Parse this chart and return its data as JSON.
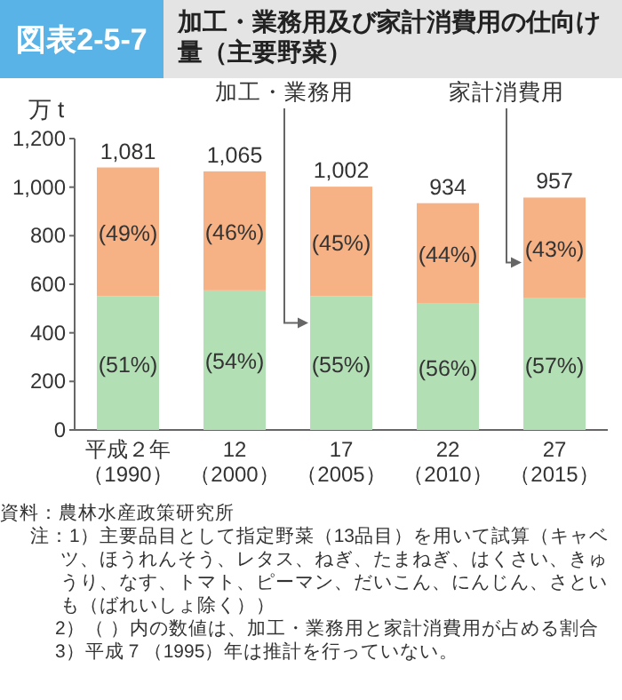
{
  "chart_data": {
    "type": "bar",
    "stacked": true,
    "title": "加工・業務用及び家計消費用の仕向け量（主要野菜）",
    "ylabel": "万 t",
    "categories": [
      "平成２年（1990）",
      "12（2000）",
      "17（2005）",
      "22（2010）",
      "27（2015）"
    ],
    "series": [
      {
        "name": "加工・業務用",
        "color": "#b3dfb5",
        "values": [
          551,
          575,
          551,
          523,
          545
        ]
      },
      {
        "name": "家計消費用",
        "color": "#f6b184",
        "values": [
          530,
          490,
          451,
          411,
          412
        ]
      }
    ],
    "totals": [
      "1,081",
      "1,065",
      "1,002",
      "934",
      "957"
    ],
    "ylim": [
      0,
      1200
    ],
    "yticks": [
      {
        "value": 0,
        "label": "0"
      },
      {
        "value": 200,
        "label": "200"
      },
      {
        "value": 400,
        "label": "400"
      },
      {
        "value": 600,
        "label": "600"
      },
      {
        "value": 800,
        "label": "800"
      },
      {
        "value": 1000,
        "label": "1,000"
      },
      {
        "value": 1200,
        "label": "1,200"
      }
    ],
    "grid": false,
    "annotations": [
      "図表2-5-7",
      "資料：農林水産政策研究所",
      "注：1）主要品目として指定野菜（13品目）を用いて試算（キャベツ、ほうれんそう、レタス、ねぎ、たまねぎ、はくさい、きゅうり、なす、トマト、ピーマン、だいこん、にんじん、さといも（ばれいしょ除く））",
      "2）（ ）内の数値は、加工・業務用と家計消費用が占める割合",
      "3）平成７（1995）年は推計を行っていない。",
      "(51%)",
      "(54%)",
      "(55%)",
      "(56%)",
      "(57%)",
      "(49%)",
      "(46%)",
      "(45%)",
      "(44%)",
      "(43%)"
    ]
  }
}
